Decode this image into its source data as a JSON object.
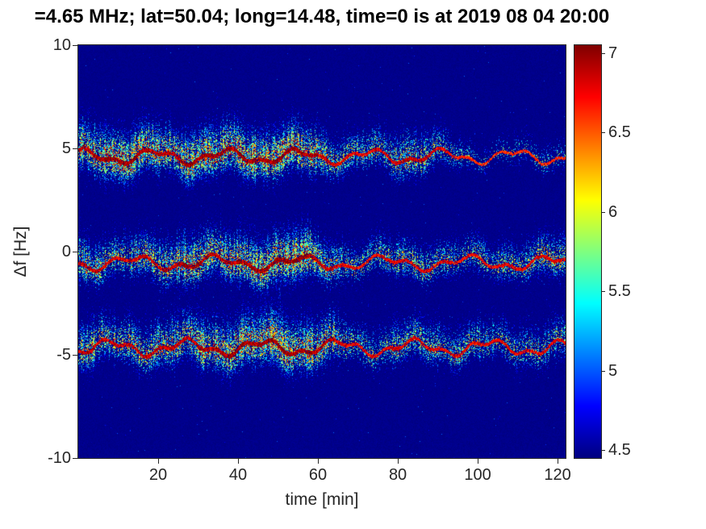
{
  "title": "=4.65 MHz;  lat=50.04; long=14.48, time=0 is at 2019 08 04 20:00",
  "chart_data": {
    "type": "heatmap",
    "title": "=4.65 MHz;  lat=50.04; long=14.48, time=0 is at 2019 08 04 20:00",
    "xlabel": "time [min]",
    "ylabel": "Δf [Hz]",
    "xlim": [
      0,
      122
    ],
    "ylim": [
      -10,
      10
    ],
    "xticks": [
      20,
      40,
      60,
      80,
      100,
      120
    ],
    "yticks": [
      10,
      5,
      0,
      -5,
      -10
    ],
    "grid": false,
    "colormap": "jet",
    "value_range": [
      4.45,
      7.05
    ],
    "background_value": 4.5,
    "colorbar": {
      "position": "right",
      "ticks": [
        4.5,
        5,
        5.5,
        6,
        6.5,
        7
      ]
    },
    "bands": [
      {
        "name": "upper-doppler-trace",
        "center": 4.6,
        "wiggle": [
          [
            0.28,
            18,
            1.2
          ],
          [
            0.14,
            7.4,
            0.3
          ]
        ],
        "width": 1.0,
        "envelope": [
          [
            0,
            0.85
          ],
          [
            8,
            0.95
          ],
          [
            14,
            1.0
          ],
          [
            22,
            0.85
          ],
          [
            28,
            0.9
          ],
          [
            36,
            1.0
          ],
          [
            44,
            0.95
          ],
          [
            52,
            1.0
          ],
          [
            58,
            0.9
          ],
          [
            64,
            0.6
          ],
          [
            70,
            0.5
          ],
          [
            76,
            0.55
          ],
          [
            82,
            0.8
          ],
          [
            88,
            0.6
          ],
          [
            94,
            0.35
          ],
          [
            100,
            0.2
          ],
          [
            108,
            0.22
          ],
          [
            116,
            0.25
          ],
          [
            122,
            0.3
          ]
        ]
      },
      {
        "name": "middle-doppler-trace",
        "center": -0.55,
        "wiggle": [
          [
            0.26,
            21,
            3.8
          ],
          [
            0.16,
            8.2,
            1.1
          ]
        ],
        "width": 1.0,
        "envelope": [
          [
            0,
            0.75
          ],
          [
            8,
            0.6
          ],
          [
            16,
            0.65
          ],
          [
            24,
            0.85
          ],
          [
            29,
            1.0
          ],
          [
            34,
            0.8
          ],
          [
            42,
            0.9
          ],
          [
            48,
            1.0
          ],
          [
            56,
            1.0
          ],
          [
            63,
            0.7
          ],
          [
            70,
            0.45
          ],
          [
            78,
            0.5
          ],
          [
            86,
            0.65
          ],
          [
            94,
            0.5
          ],
          [
            102,
            0.5
          ],
          [
            110,
            0.55
          ],
          [
            116,
            0.6
          ],
          [
            122,
            0.6
          ]
        ]
      },
      {
        "name": "lower-doppler-trace",
        "center": -4.65,
        "wiggle": [
          [
            0.3,
            19,
            5.2
          ],
          [
            0.15,
            7.1,
            2.4
          ]
        ],
        "width": 1.05,
        "envelope": [
          [
            0,
            0.7
          ],
          [
            10,
            0.65
          ],
          [
            18,
            0.7
          ],
          [
            26,
            0.8
          ],
          [
            34,
            0.85
          ],
          [
            42,
            0.95
          ],
          [
            50,
            1.05
          ],
          [
            58,
            0.95
          ],
          [
            64,
            0.75
          ],
          [
            70,
            0.45
          ],
          [
            78,
            0.55
          ],
          [
            86,
            0.6
          ],
          [
            94,
            0.5
          ],
          [
            102,
            0.5
          ],
          [
            110,
            0.5
          ],
          [
            116,
            0.55
          ],
          [
            122,
            0.55
          ]
        ]
      }
    ]
  }
}
